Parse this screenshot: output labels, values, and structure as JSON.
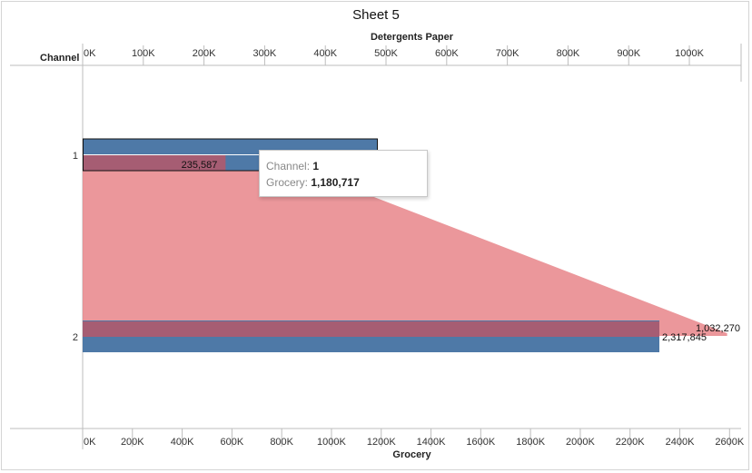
{
  "window": {
    "title": "Sheet 5"
  },
  "colors": {
    "detergents_bar": "#4e79a7",
    "grocery_area": "#e8858a",
    "overlap": "#a65d73",
    "axis": "#bdbdbd"
  },
  "chart_data": {
    "type": "bar",
    "title": "Sheet 5",
    "row_header": "Channel",
    "categories": [
      "1",
      "2"
    ],
    "top_axis": {
      "label": "Detergents Paper",
      "range": [
        0,
        1080000
      ],
      "ticks": [
        0,
        100000,
        200000,
        300000,
        400000,
        500000,
        600000,
        700000,
        800000,
        900000,
        1000000
      ],
      "tick_labels": [
        "0K",
        "100K",
        "200K",
        "300K",
        "400K",
        "500K",
        "600K",
        "700K",
        "800K",
        "900K",
        "1000K"
      ]
    },
    "bottom_axis": {
      "label": "Grocery",
      "range": [
        0,
        2650000
      ],
      "ticks": [
        0,
        200000,
        400000,
        600000,
        800000,
        1000000,
        1200000,
        1400000,
        1600000,
        1800000,
        2000000,
        2200000,
        2400000,
        2600000
      ],
      "tick_labels": [
        "0K",
        "200K",
        "400K",
        "600K",
        "800K",
        "1000K",
        "1200K",
        "1400K",
        "1600K",
        "1800K",
        "2000K",
        "2200K",
        "2400K",
        "2600K"
      ]
    },
    "series": [
      {
        "name": "Detergents Paper",
        "mark": "bar",
        "axis": "top",
        "values": [
          235587,
          1032270
        ],
        "labels": [
          "235,587",
          "1,032,270"
        ]
      },
      {
        "name": "Grocery",
        "mark": "bar+area",
        "axis": "bottom",
        "values": [
          1180717,
          2317845
        ],
        "labels": [
          "",
          "2,317,845"
        ]
      }
    ],
    "selected_category": "1"
  },
  "tooltip": {
    "channel_label": "Channel:",
    "channel_value": "1",
    "grocery_label": "Grocery:",
    "grocery_value": "1,180,717"
  }
}
